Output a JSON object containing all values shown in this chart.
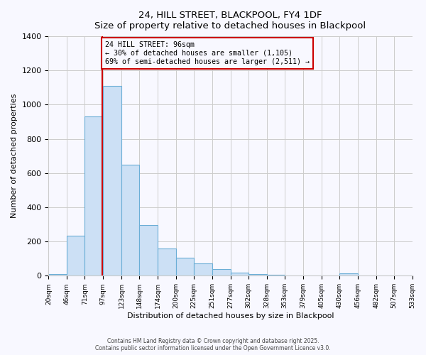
{
  "title": "24, HILL STREET, BLACKPOOL, FY4 1DF",
  "subtitle": "Size of property relative to detached houses in Blackpool",
  "xlabel": "Distribution of detached houses by size in Blackpool",
  "ylabel": "Number of detached properties",
  "bin_edges": [
    20,
    46,
    71,
    97,
    123,
    148,
    174,
    200,
    225,
    251,
    277,
    302,
    328,
    353,
    379,
    405,
    430,
    456,
    482,
    507,
    533
  ],
  "bin_heights": [
    10,
    232,
    930,
    1110,
    650,
    295,
    160,
    105,
    70,
    38,
    20,
    8,
    5,
    3,
    2,
    0,
    15,
    0,
    3,
    0
  ],
  "bar_facecolor": "#cce0f5",
  "bar_edgecolor": "#6baed6",
  "property_line_x": 96,
  "property_line_color": "#cc0000",
  "annotation_text": "24 HILL STREET: 96sqm\n← 30% of detached houses are smaller (1,105)\n69% of semi-detached houses are larger (2,511) →",
  "annotation_box_edgecolor": "#cc0000",
  "ylim": [
    0,
    1400
  ],
  "yticks": [
    0,
    200,
    400,
    600,
    800,
    1000,
    1200,
    1400
  ],
  "footer_line1": "Contains HM Land Registry data © Crown copyright and database right 2025.",
  "footer_line2": "Contains public sector information licensed under the Open Government Licence v3.0.",
  "bg_color": "#f8f8ff",
  "grid_color": "#cccccc"
}
